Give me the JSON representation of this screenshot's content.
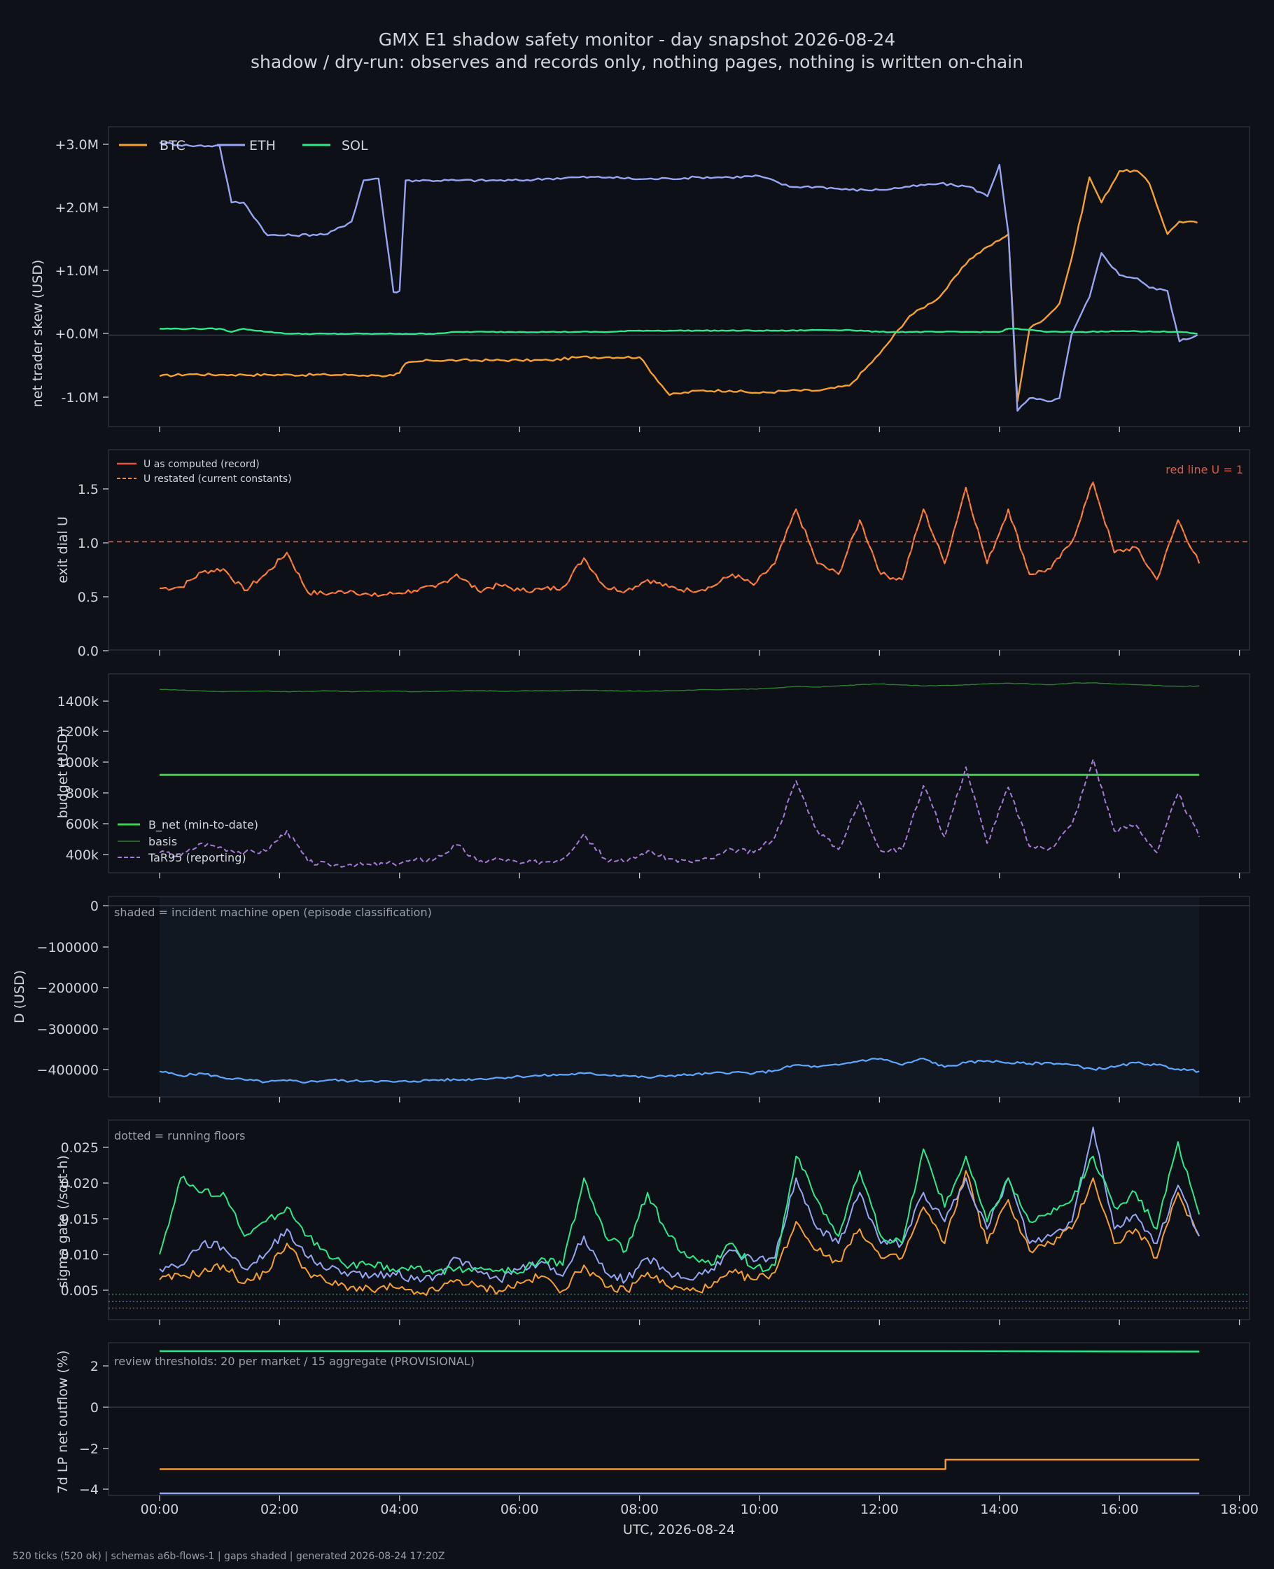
{
  "title": "GMX E1 shadow safety monitor - day snapshot 2026-08-24",
  "subtitle": "shadow / dry-run: observes and records only, nothing pages, nothing is written on-chain",
  "footer": "520 ticks (520 ok) | schemas a6b-flows-1 | gaps shaded | generated 2026-08-24 17:20Z",
  "colors": {
    "background": "#0e1117",
    "panel": "#0d1016",
    "btc": "#f7a032",
    "eth": "#96a6f2",
    "sol": "#2ee88a",
    "red_line": "#e8553e",
    "budget": "#3ecf4a",
    "basis": "#2e7d32",
    "tar95": "#a67ad8",
    "d": "#5ea7ff",
    "u": "#f08a3a"
  },
  "chart_data": [
    {
      "type": "line",
      "ylabel": "net trader skew (USD)",
      "xlabel": "UTC, 2026-08-24",
      "x_ticks": [
        "00:00",
        "02:00",
        "04:00",
        "06:00",
        "08:00",
        "10:00",
        "12:00",
        "14:00",
        "16:00",
        "18:00"
      ],
      "y_ticks": [
        "+3.0M",
        "+2.0M",
        "+1.0M",
        "+0.0M",
        "-1.0M"
      ],
      "ylim": [
        -1.45,
        3.3
      ],
      "legend": "top-left",
      "x": [
        0,
        0.5,
        1,
        1.2,
        1.4,
        1.8,
        2.2,
        2.8,
        3.2,
        3.4,
        3.6,
        3.65,
        3.9,
        4.0,
        4.1,
        4.5,
        5.0,
        5.5,
        6.0,
        6.5,
        7.0,
        7.5,
        8.0,
        8.5,
        9.0,
        9.5,
        10.0,
        10.5,
        11.0,
        11.5,
        12.0,
        12.5,
        13.0,
        13.5,
        13.8,
        14.0,
        14.15,
        14.3,
        14.5,
        14.8,
        15.0,
        15.2,
        15.5,
        15.7,
        16.0,
        16.3,
        16.5,
        16.8,
        17.0,
        17.3
      ],
      "series": [
        {
          "name": "BTC",
          "values": [
            -0.65,
            -0.62,
            -0.63,
            -0.63,
            -0.63,
            -0.63,
            -0.63,
            -0.63,
            -0.63,
            -0.64,
            -0.64,
            -0.64,
            -0.64,
            -0.6,
            -0.45,
            -0.4,
            -0.4,
            -0.4,
            -0.4,
            -0.4,
            -0.35,
            -0.35,
            -0.35,
            -0.95,
            -0.88,
            -0.88,
            -0.92,
            -0.88,
            -0.88,
            -0.8,
            -0.3,
            0.3,
            0.6,
            1.2,
            1.4,
            1.5,
            1.6,
            -1.05,
            0.1,
            0.3,
            0.5,
            1.2,
            2.5,
            2.1,
            2.6,
            2.6,
            2.4,
            1.6,
            1.8,
            1.78
          ]
        },
        {
          "name": "ETH",
          "values": [
            3.05,
            3.0,
            3.0,
            2.1,
            2.1,
            1.58,
            1.58,
            1.6,
            1.8,
            2.45,
            2.48,
            2.48,
            0.68,
            0.7,
            2.45,
            2.45,
            2.45,
            2.45,
            2.45,
            2.48,
            2.5,
            2.5,
            2.47,
            2.48,
            2.5,
            2.5,
            2.52,
            2.35,
            2.35,
            2.3,
            2.3,
            2.35,
            2.4,
            2.35,
            2.2,
            2.7,
            1.6,
            -1.2,
            -1.0,
            -1.05,
            -1.0,
            0.0,
            0.6,
            1.3,
            0.95,
            0.9,
            0.75,
            0.7,
            -0.1,
            0.0
          ]
        },
        {
          "name": "SOL",
          "values": [
            0.1,
            0.1,
            0.1,
            0.05,
            0.1,
            0.05,
            0.02,
            0.02,
            0.02,
            0.02,
            0.02,
            0.02,
            0.02,
            0.02,
            0.02,
            0.02,
            0.05,
            0.05,
            0.05,
            0.05,
            0.05,
            0.05,
            0.07,
            0.07,
            0.07,
            0.07,
            0.07,
            0.07,
            0.08,
            0.08,
            0.05,
            0.05,
            0.05,
            0.05,
            0.05,
            0.05,
            0.1,
            0.1,
            0.08,
            0.05,
            0.05,
            0.05,
            0.05,
            0.06,
            0.06,
            0.06,
            0.06,
            0.05,
            0.05,
            0.02
          ]
        }
      ]
    },
    {
      "type": "line",
      "ylabel": "exit dial U",
      "y_ticks": [
        "1.5",
        "1.0",
        "0.5",
        "0.0"
      ],
      "ylim": [
        0,
        1.85
      ],
      "annotation": "red line U = 1",
      "threshold": 1.0,
      "series": [
        {
          "name": "U as computed (record)",
          "values": [
            0.57,
            0.58,
            0.72,
            0.75,
            0.55,
            0.7,
            0.9,
            0.53,
            0.52,
            0.55,
            0.5,
            0.52,
            0.55,
            0.58,
            0.7,
            0.55,
            0.6,
            0.55,
            0.56,
            0.58,
            0.85,
            0.58,
            0.55,
            0.65,
            0.58,
            0.55,
            0.58,
            0.7,
            0.6,
            0.8,
            1.3,
            0.8,
            0.7,
            1.2,
            0.7,
            0.65,
            1.3,
            0.8,
            1.5,
            0.8,
            1.3,
            0.7,
            0.75,
            1.0,
            1.55,
            0.9,
            0.95,
            0.65,
            1.2,
            0.8
          ]
        },
        {
          "name": "U restated (current constants)",
          "values": [
            0.57,
            0.58,
            0.72,
            0.75,
            0.55,
            0.7,
            0.9,
            0.53,
            0.52,
            0.55,
            0.5,
            0.52,
            0.55,
            0.58,
            0.7,
            0.55,
            0.6,
            0.55,
            0.56,
            0.58,
            0.85,
            0.58,
            0.55,
            0.65,
            0.58,
            0.55,
            0.58,
            0.7,
            0.6,
            0.8,
            1.3,
            0.8,
            0.7,
            1.2,
            0.7,
            0.65,
            1.3,
            0.8,
            1.5,
            0.8,
            1.3,
            0.7,
            0.75,
            1.0,
            1.55,
            0.9,
            0.95,
            0.65,
            1.2,
            0.8
          ]
        }
      ]
    },
    {
      "type": "line",
      "ylabel": "budget (USD)",
      "y_ticks": [
        "1400k",
        "1200k",
        "1000k",
        "800k",
        "600k",
        "400k"
      ],
      "ylim": [
        290,
        1570
      ],
      "series": [
        {
          "name": "B_net (min-to-date)",
          "values": [
            920,
            920,
            920,
            920,
            920,
            920,
            920,
            920,
            920,
            920,
            920,
            920,
            920,
            920,
            920,
            920,
            920,
            920,
            920,
            920,
            920,
            920,
            920,
            920,
            920,
            920,
            920,
            920,
            920,
            920,
            920,
            920,
            920,
            920,
            920,
            920,
            920,
            920,
            920,
            920,
            920,
            920,
            920,
            920,
            920,
            920,
            920,
            920,
            920,
            920
          ]
        },
        {
          "name": "basis",
          "values": [
            1470,
            1465,
            1460,
            1455,
            1458,
            1460,
            1455,
            1458,
            1460,
            1455,
            1458,
            1460,
            1455,
            1458,
            1460,
            1462,
            1458,
            1460,
            1462,
            1460,
            1465,
            1462,
            1460,
            1458,
            1462,
            1465,
            1468,
            1470,
            1472,
            1478,
            1490,
            1485,
            1492,
            1500,
            1505,
            1498,
            1492,
            1495,
            1500,
            1505,
            1510,
            1505,
            1500,
            1510,
            1512,
            1505,
            1500,
            1495,
            1490,
            1492
          ]
        },
        {
          "name": "TaR95 (reporting)",
          "values": [
            420,
            400,
            480,
            450,
            420,
            430,
            560,
            360,
            340,
            345,
            340,
            350,
            370,
            380,
            470,
            360,
            380,
            350,
            360,
            380,
            540,
            380,
            360,
            430,
            380,
            360,
            380,
            440,
            420,
            520,
            880,
            560,
            440,
            750,
            430,
            440,
            850,
            520,
            970,
            480,
            840,
            460,
            450,
            600,
            1020,
            560,
            600,
            420,
            800,
            520
          ]
        }
      ]
    },
    {
      "type": "line",
      "ylabel": "D (USD)",
      "y_ticks": [
        "0",
        "−100000",
        "−200000",
        "−300000",
        "−400000"
      ],
      "ylim": [
        -470000,
        0
      ],
      "annotation": "shaded = incident machine open (episode classification)",
      "shaded_range": [
        "00:00",
        "17:20"
      ],
      "series": [
        {
          "name": "D",
          "values": [
            -410000,
            -420000,
            -415000,
            -425000,
            -430000,
            -435000,
            -432000,
            -435000,
            -430000,
            -433000,
            -432000,
            -435000,
            -433000,
            -430000,
            -430000,
            -428000,
            -425000,
            -422000,
            -420000,
            -418000,
            -415000,
            -418000,
            -420000,
            -425000,
            -420000,
            -418000,
            -415000,
            -412000,
            -415000,
            -408000,
            -395000,
            -400000,
            -395000,
            -385000,
            -380000,
            -395000,
            -380000,
            -400000,
            -390000,
            -385000,
            -390000,
            -392000,
            -390000,
            -395000,
            -405000,
            -400000,
            -390000,
            -395000,
            -405000,
            -410000
          ]
        }
      ]
    },
    {
      "type": "line",
      "ylabel": "sigma gate (/sqrt-h)",
      "y_ticks": [
        "0.025",
        "0.020",
        "0.015",
        "0.010",
        "0.005"
      ],
      "ylim": [
        0.0005,
        0.028
      ],
      "annotation": "dotted = running floors",
      "floors": [
        0.004,
        0.003,
        0.0021
      ],
      "series": [
        {
          "name": "BTC",
          "values": [
            0.006,
            0.0065,
            0.007,
            0.008,
            0.0055,
            0.007,
            0.011,
            0.007,
            0.0055,
            0.005,
            0.0045,
            0.005,
            0.004,
            0.0045,
            0.006,
            0.005,
            0.0045,
            0.0055,
            0.0065,
            0.0045,
            0.008,
            0.005,
            0.0045,
            0.007,
            0.005,
            0.0045,
            0.005,
            0.007,
            0.006,
            0.007,
            0.014,
            0.01,
            0.0085,
            0.013,
            0.009,
            0.009,
            0.016,
            0.011,
            0.021,
            0.011,
            0.017,
            0.01,
            0.011,
            0.013,
            0.02,
            0.011,
            0.013,
            0.009,
            0.018,
            0.012
          ]
        },
        {
          "name": "ETH",
          "values": [
            0.0075,
            0.008,
            0.011,
            0.0105,
            0.0075,
            0.0095,
            0.013,
            0.009,
            0.0075,
            0.007,
            0.0065,
            0.007,
            0.006,
            0.0065,
            0.009,
            0.007,
            0.006,
            0.0075,
            0.0085,
            0.0065,
            0.012,
            0.007,
            0.006,
            0.009,
            0.007,
            0.006,
            0.0075,
            0.01,
            0.0085,
            0.009,
            0.02,
            0.013,
            0.011,
            0.018,
            0.011,
            0.011,
            0.018,
            0.014,
            0.02,
            0.013,
            0.02,
            0.011,
            0.012,
            0.014,
            0.027,
            0.013,
            0.015,
            0.011,
            0.019,
            0.012
          ]
        },
        {
          "name": "SOL",
          "values": [
            0.0095,
            0.02,
            0.018,
            0.018,
            0.012,
            0.014,
            0.016,
            0.012,
            0.009,
            0.008,
            0.008,
            0.0075,
            0.0075,
            0.0072,
            0.0075,
            0.0075,
            0.0072,
            0.007,
            0.009,
            0.008,
            0.02,
            0.012,
            0.01,
            0.018,
            0.012,
            0.009,
            0.008,
            0.011,
            0.0075,
            0.008,
            0.023,
            0.017,
            0.012,
            0.021,
            0.012,
            0.011,
            0.024,
            0.016,
            0.023,
            0.014,
            0.02,
            0.014,
            0.015,
            0.017,
            0.023,
            0.016,
            0.018,
            0.013,
            0.025,
            0.015
          ]
        }
      ]
    },
    {
      "type": "line",
      "ylabel": "7d LP net outflow (%)",
      "y_ticks": [
        "2",
        "0",
        "−2",
        "−4"
      ],
      "ylim": [
        -4.05,
        3.2
      ],
      "annotation": "review thresholds: 20 per market / 15 aggregate (PROVISIONAL)",
      "series": [
        {
          "name": "SOL",
          "points": [
            [
              0,
              2.8
            ],
            [
              13.1,
              2.8
            ],
            [
              17.33,
              2.78
            ]
          ]
        },
        {
          "name": "BTC",
          "points": [
            [
              0,
              -2.8
            ],
            [
              13.1,
              -2.8
            ],
            [
              13.1,
              -2.35
            ],
            [
              17.33,
              -2.35
            ]
          ]
        },
        {
          "name": "ETH",
          "points": [
            [
              0,
              -3.95
            ],
            [
              17.33,
              -3.95
            ]
          ]
        }
      ]
    }
  ]
}
